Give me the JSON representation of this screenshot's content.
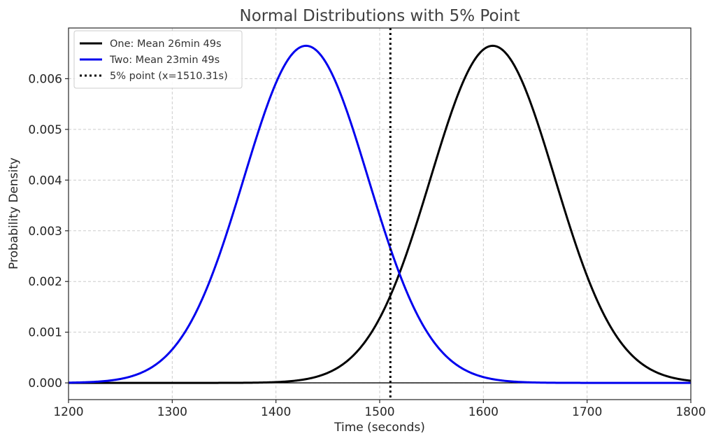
{
  "chart_data": {
    "type": "line",
    "title": "Normal Distributions with 5% Point",
    "xlabel": "Time (seconds)",
    "ylabel": "Probability Density",
    "xlim": [
      1200,
      1800
    ],
    "ylim": [
      -0.00033,
      0.007
    ],
    "xticks": [
      1200,
      1300,
      1400,
      1500,
      1600,
      1700,
      1800
    ],
    "xtick_labels": [
      "1200",
      "1300",
      "1400",
      "1500",
      "1600",
      "1700",
      "1800"
    ],
    "yticks": [
      0,
      0.001,
      0.002,
      0.003,
      0.004,
      0.005,
      0.006
    ],
    "ytick_labels": [
      "0.000",
      "0.001",
      "0.002",
      "0.003",
      "0.004",
      "0.005",
      "0.006"
    ],
    "grid": true,
    "legend_position": "top-left",
    "series": [
      {
        "name": "One: Mean 26min 49s",
        "kind": "normal",
        "mean": 1609,
        "std": 60,
        "color": "#000000",
        "style": "solid"
      },
      {
        "name": "Two: Mean 23min 49s",
        "kind": "normal",
        "mean": 1429,
        "std": 60,
        "color": "#0000ee",
        "style": "solid"
      },
      {
        "name": "5% point (x=1510.31s)",
        "kind": "vline",
        "x": 1510.31,
        "color": "#000000",
        "style": "dotted"
      }
    ],
    "baseline_y": 0
  }
}
